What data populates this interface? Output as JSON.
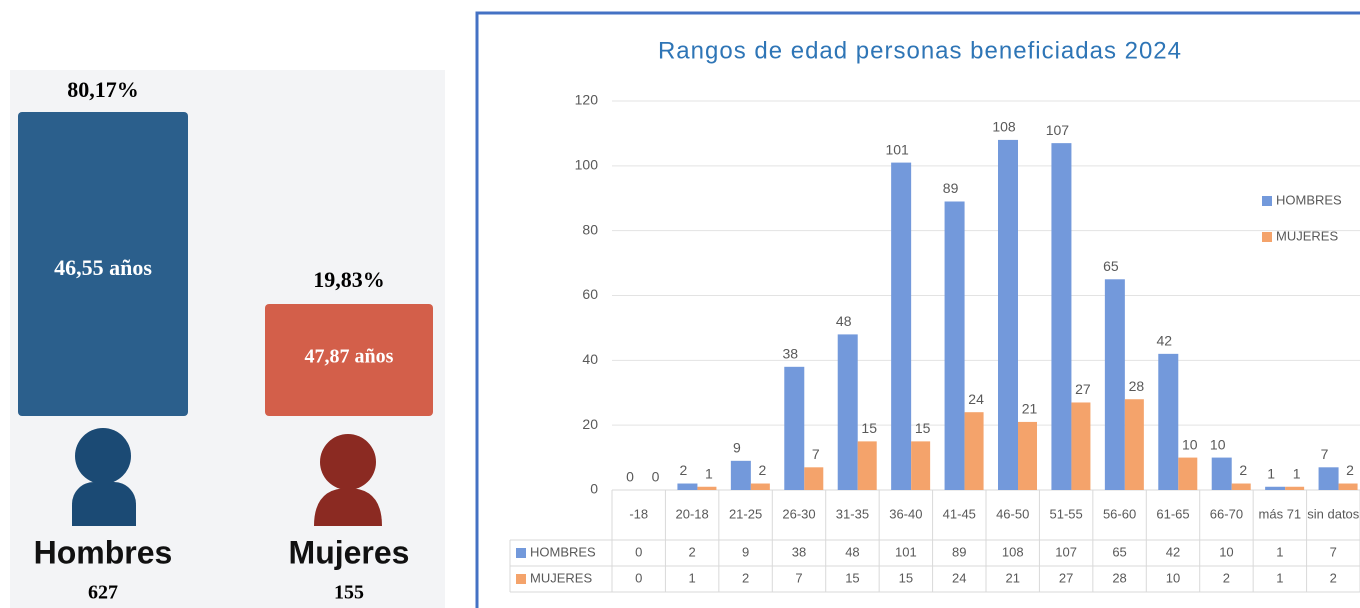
{
  "summary": {
    "men": {
      "percent": "80,17%",
      "age": "46,55 años",
      "label": "Hombres",
      "count": "627"
    },
    "women": {
      "percent": "19,83%",
      "age": "47,87 años",
      "label": "Mujeres",
      "count": "155"
    }
  },
  "chart_data": {
    "type": "bar",
    "title": "Rangos de edad personas beneficiadas 2024",
    "categories": [
      "-18",
      "20-18",
      "21-25",
      "26-30",
      "31-35",
      "36-40",
      "41-45",
      "46-50",
      "51-55",
      "56-60",
      "61-65",
      "66-70",
      "más 71",
      "sin datos"
    ],
    "series": [
      {
        "name": "HOMBRES",
        "color": "#7399db",
        "values": [
          0,
          2,
          9,
          38,
          48,
          101,
          89,
          108,
          107,
          65,
          42,
          10,
          1,
          7
        ]
      },
      {
        "name": "MUJERES",
        "color": "#f4a36b",
        "values": [
          0,
          1,
          2,
          7,
          15,
          15,
          24,
          21,
          27,
          28,
          10,
          2,
          1,
          2
        ]
      }
    ],
    "ylim": [
      0,
      120
    ],
    "yticks": [
      0,
      20,
      40,
      60,
      80,
      100,
      120
    ],
    "grid": true,
    "legend": "right"
  }
}
